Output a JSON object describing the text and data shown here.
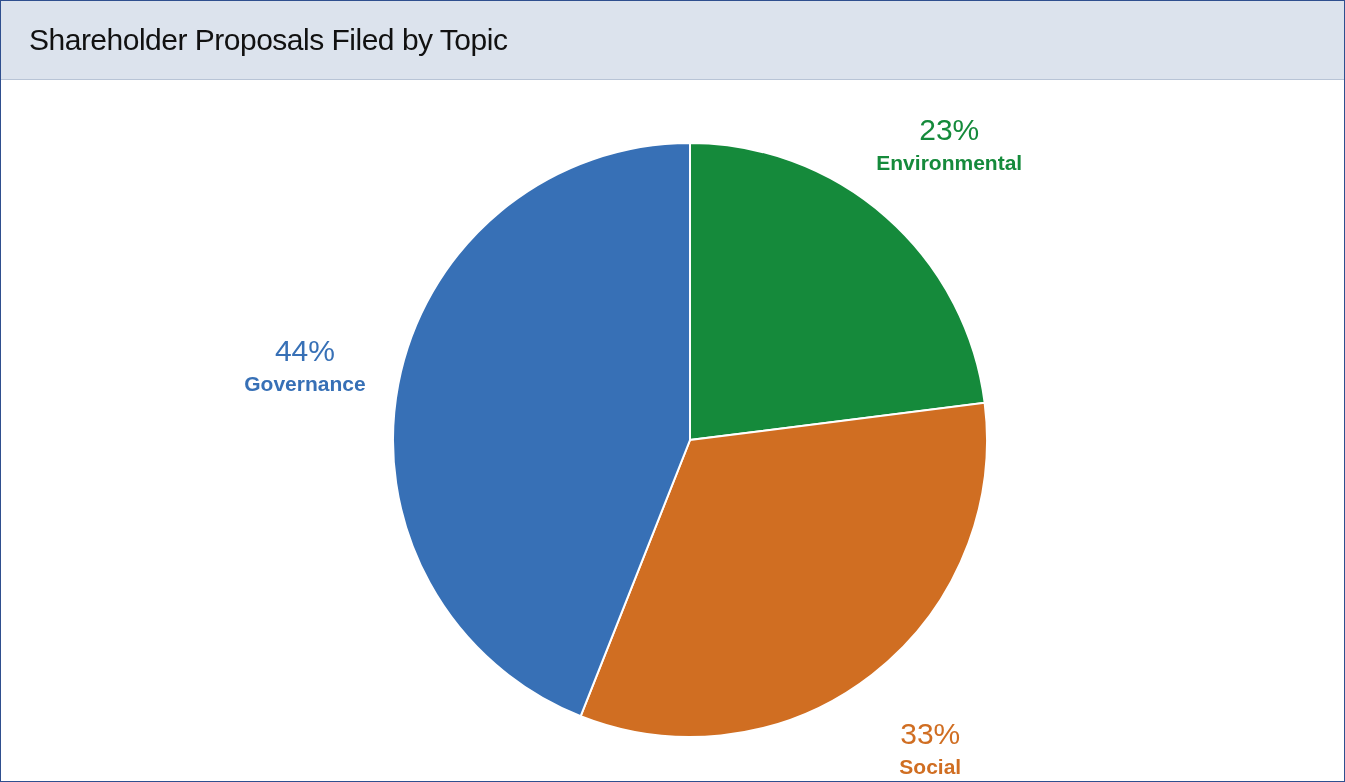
{
  "chart_data": {
    "type": "pie",
    "title": "Shareholder Proposals Filed by Topic",
    "categories": [
      "Environmental",
      "Social",
      "Governance"
    ],
    "values": [
      23,
      33,
      44
    ],
    "value_labels": [
      "23%",
      "33%",
      "44%"
    ],
    "colors": [
      "#158a3b",
      "#d06e22",
      "#3770b6"
    ]
  }
}
